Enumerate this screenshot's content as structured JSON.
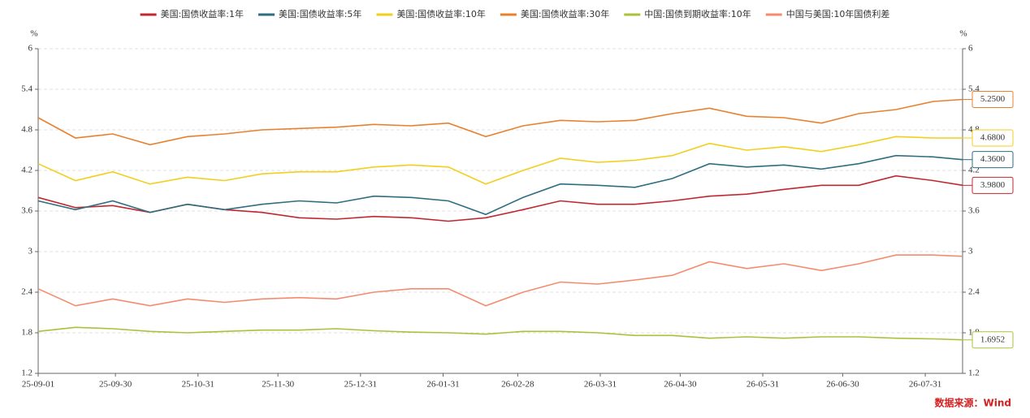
{
  "chart_data": {
    "type": "line",
    "y_label": "%",
    "y2_label": "%",
    "source": "数据来源：Wind",
    "x": [
      "25-09-01",
      "25-09-15",
      "25-09-29",
      "25-10-13",
      "25-10-27",
      "25-11-10",
      "25-11-24",
      "25-12-08",
      "25-12-22",
      "26-01-05",
      "26-01-19",
      "26-02-02",
      "26-02-16",
      "26-03-02",
      "26-03-16",
      "26-03-30",
      "26-04-13",
      "26-04-27",
      "26-05-11",
      "26-05-25",
      "26-06-08",
      "26-06-22",
      "26-07-06",
      "26-07-20",
      "26-08-03",
      "26-08-14"
    ],
    "xlim": [
      "25-09-01",
      "26-08-14"
    ],
    "xticks": [
      "25-09-01",
      "25-09-30",
      "25-10-31",
      "25-11-30",
      "25-12-31",
      "26-01-31",
      "26-02-28",
      "26-03-31",
      "26-04-30",
      "26-05-31",
      "26-06-30",
      "26-07-31"
    ],
    "ylim": [
      1.2,
      6
    ],
    "yticks": [
      1.2,
      1.8,
      2.4,
      3,
      3.6,
      4.2,
      4.8,
      5.4,
      6
    ],
    "y2lim": [
      1.2,
      6
    ],
    "y2ticks": [
      1.2,
      1.8,
      2.4,
      3,
      3.6,
      4.2,
      4.8,
      5.4,
      6
    ],
    "grid": true,
    "series": [
      {
        "name": "美国:国债收益率:1年",
        "color": "#c0282f",
        "end_label": "3.9800",
        "values": [
          3.8,
          3.65,
          3.68,
          3.58,
          3.7,
          3.62,
          3.58,
          3.5,
          3.48,
          3.52,
          3.5,
          3.45,
          3.5,
          3.62,
          3.75,
          3.7,
          3.7,
          3.75,
          3.82,
          3.85,
          3.92,
          3.98,
          3.98,
          4.12,
          4.05,
          3.98
        ]
      },
      {
        "name": "美国:国债收益率:5年",
        "color": "#2e6e7e",
        "end_label": "4.3600",
        "values": [
          3.75,
          3.62,
          3.75,
          3.58,
          3.7,
          3.62,
          3.7,
          3.75,
          3.72,
          3.82,
          3.8,
          3.75,
          3.55,
          3.8,
          4.0,
          3.98,
          3.95,
          4.08,
          4.3,
          4.25,
          4.28,
          4.22,
          4.3,
          4.42,
          4.4,
          4.36
        ]
      },
      {
        "name": "美国:国债收益率:10年",
        "color": "#f2cf1d",
        "end_label": "4.6800",
        "values": [
          4.3,
          4.05,
          4.18,
          4.0,
          4.1,
          4.05,
          4.15,
          4.18,
          4.18,
          4.25,
          4.28,
          4.25,
          4.0,
          4.2,
          4.38,
          4.32,
          4.35,
          4.42,
          4.6,
          4.5,
          4.55,
          4.48,
          4.58,
          4.7,
          4.68,
          4.68
        ]
      },
      {
        "name": "美国:国债收益率:30年",
        "color": "#e8812e",
        "end_label": "5.2500",
        "values": [
          4.98,
          4.68,
          4.74,
          4.58,
          4.7,
          4.74,
          4.8,
          4.82,
          4.84,
          4.88,
          4.86,
          4.9,
          4.7,
          4.86,
          4.94,
          4.92,
          4.94,
          5.04,
          5.12,
          5.0,
          4.98,
          4.9,
          5.04,
          5.1,
          5.22,
          5.25
        ]
      },
      {
        "name": "中国:国债到期收益率:10年",
        "color": "#a8c23a",
        "end_label": "1.6952",
        "values": [
          1.82,
          1.88,
          1.86,
          1.82,
          1.8,
          1.82,
          1.84,
          1.84,
          1.86,
          1.83,
          1.81,
          1.8,
          1.78,
          1.82,
          1.82,
          1.8,
          1.76,
          1.76,
          1.72,
          1.74,
          1.72,
          1.74,
          1.74,
          1.72,
          1.71,
          1.6952
        ]
      },
      {
        "name": "中国与美国:10年国债利差",
        "color": "#f58b6e",
        "values": [
          2.45,
          2.2,
          2.3,
          2.2,
          2.3,
          2.25,
          2.3,
          2.32,
          2.3,
          2.4,
          2.45,
          2.45,
          2.2,
          2.4,
          2.55,
          2.52,
          2.58,
          2.65,
          2.85,
          2.75,
          2.82,
          2.72,
          2.82,
          2.95,
          2.95,
          2.93
        ]
      }
    ]
  }
}
